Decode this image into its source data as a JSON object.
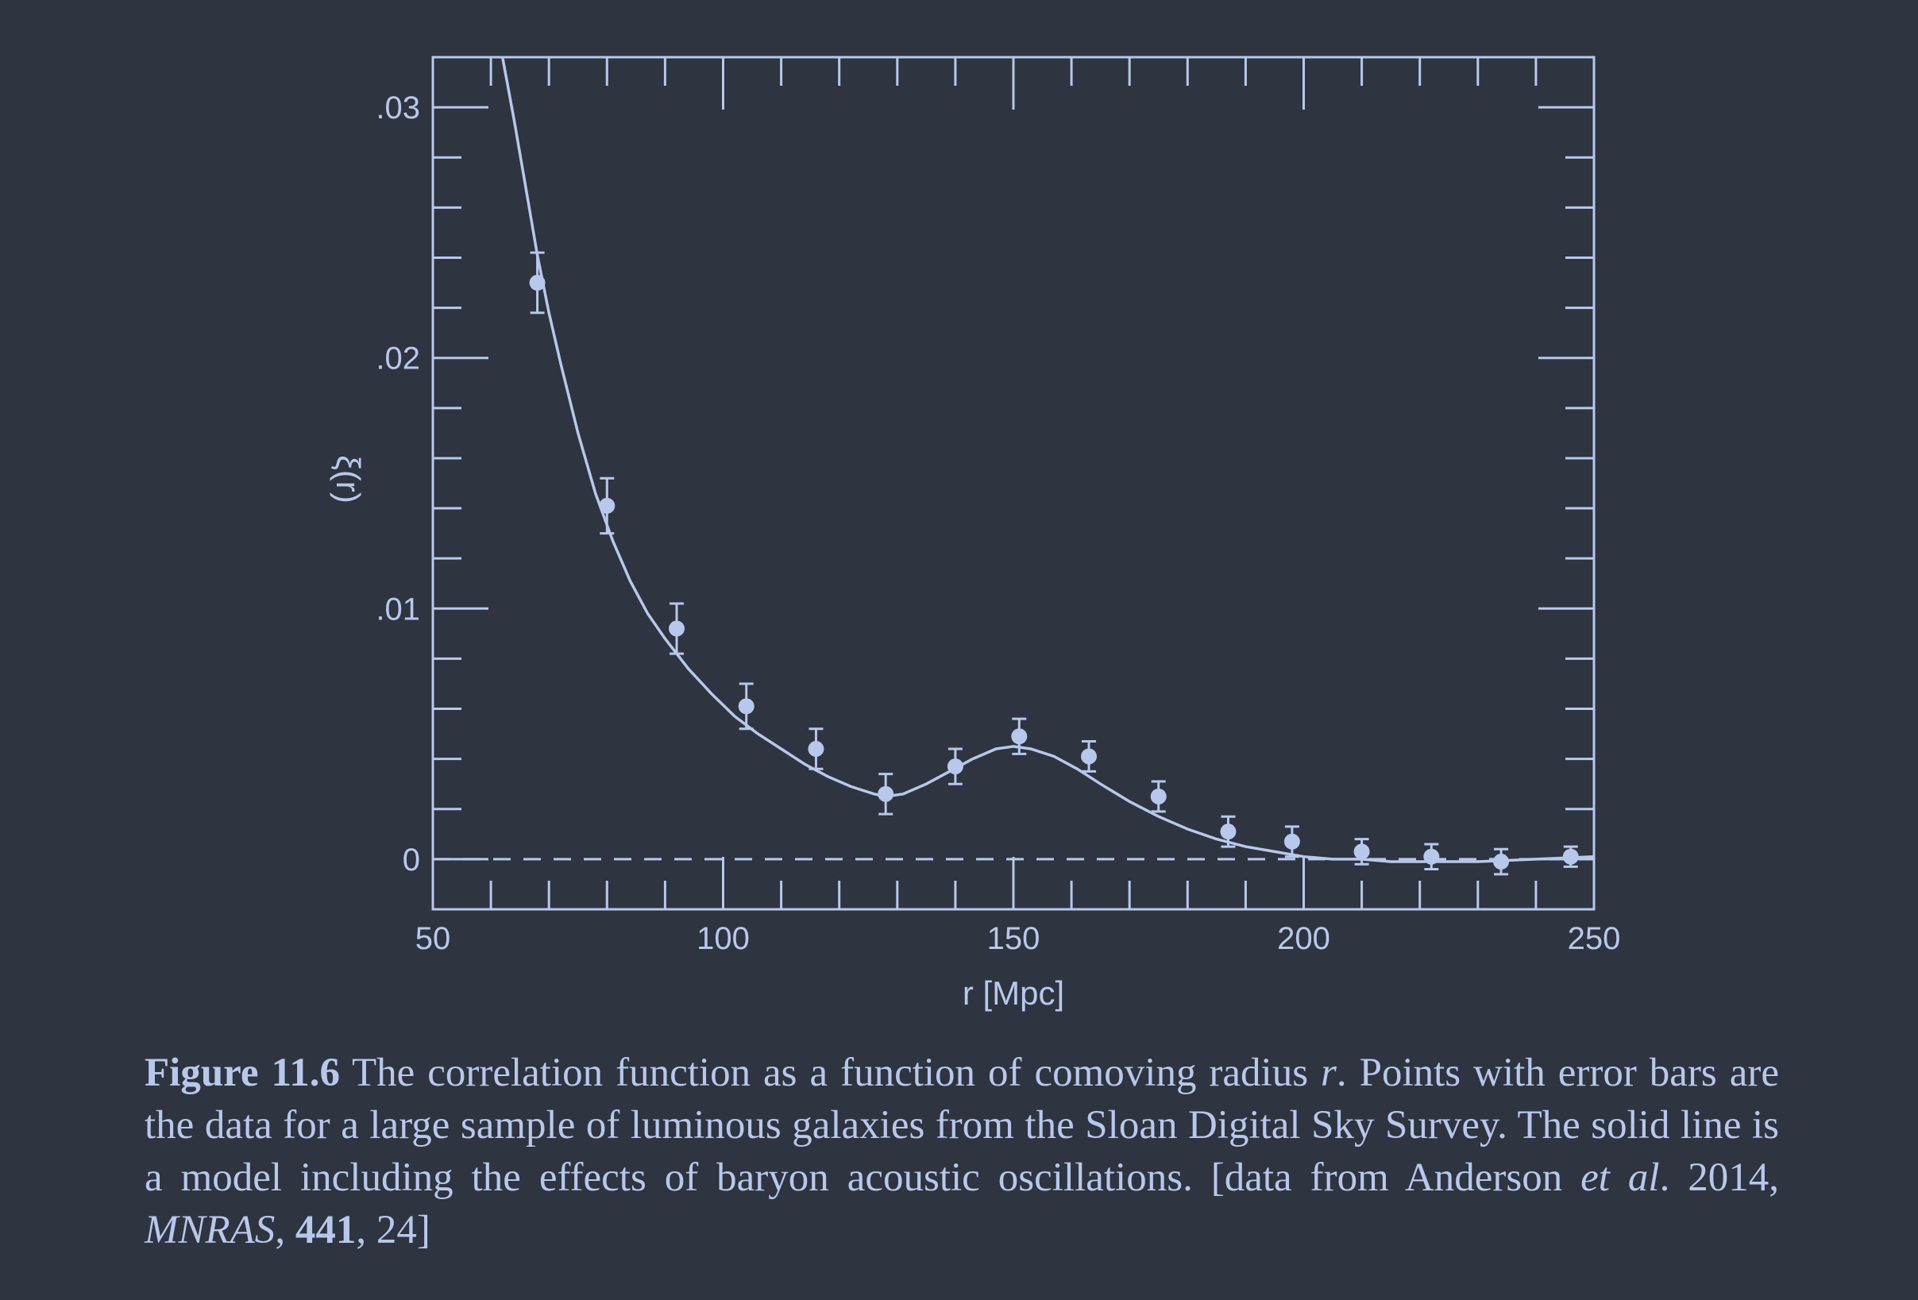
{
  "chart_data": {
    "type": "scatter",
    "title": "",
    "xlabel": "r [Mpc]",
    "ylabel": "ξ(r)",
    "xlim": [
      50,
      250
    ],
    "ylim": [
      -0.002,
      0.032
    ],
    "x_ticks": [
      {
        "value": 50,
        "label": "50"
      },
      {
        "value": 100,
        "label": "100"
      },
      {
        "value": 150,
        "label": "150"
      },
      {
        "value": 200,
        "label": "200"
      },
      {
        "value": 250,
        "label": "250"
      }
    ],
    "y_ticks": [
      {
        "value": 0,
        "label": "0"
      },
      {
        "value": 0.01,
        "label": ".01"
      },
      {
        "value": 0.02,
        "label": ".02"
      },
      {
        "value": 0.03,
        "label": ".03"
      }
    ],
    "grid": false,
    "zero_line": "dashed",
    "series": [
      {
        "kind": "points-with-error-bars",
        "x": [
          68,
          80,
          92,
          104,
          116,
          128,
          140,
          151,
          163,
          175,
          187,
          198,
          210,
          222,
          234,
          246
        ],
        "y": [
          0.023,
          0.0141,
          0.0092,
          0.0061,
          0.0044,
          0.0026,
          0.0037,
          0.0049,
          0.0041,
          0.0025,
          0.0011,
          0.0007,
          0.0003,
          0.0001,
          -0.0001,
          0.0001
        ],
        "err": [
          0.0012,
          0.0011,
          0.001,
          0.0009,
          0.0008,
          0.0008,
          0.0007,
          0.0007,
          0.0006,
          0.0006,
          0.0006,
          0.0006,
          0.0005,
          0.0005,
          0.0005,
          0.0004
        ]
      },
      {
        "kind": "model-line",
        "x": [
          62,
          64,
          66,
          68,
          70,
          72,
          75,
          78,
          81,
          84,
          87,
          90,
          94,
          98,
          102,
          106,
          110,
          114,
          118,
          122,
          126,
          128,
          131,
          135,
          139,
          143,
          147,
          150,
          153,
          157,
          161,
          165,
          170,
          175,
          180,
          185,
          190,
          195,
          200,
          205,
          210,
          215,
          220,
          230,
          240,
          250
        ],
        "y": [
          0.032,
          0.0295,
          0.0268,
          0.0241,
          0.0218,
          0.0198,
          0.017,
          0.0146,
          0.0127,
          0.0111,
          0.0098,
          0.0088,
          0.0076,
          0.0066,
          0.0057,
          0.005,
          0.0044,
          0.0038,
          0.0033,
          0.0029,
          0.0026,
          0.0025,
          0.0026,
          0.003,
          0.0035,
          0.004,
          0.0044,
          0.0045,
          0.0044,
          0.0041,
          0.0036,
          0.003,
          0.0023,
          0.0017,
          0.0012,
          0.0008,
          0.0005,
          0.0003,
          0.0001,
          0.0,
          0.0,
          -0.0001,
          -0.0001,
          -0.0001,
          0.0,
          0.0001
        ]
      }
    ]
  },
  "caption": {
    "figure_label": "Figure 11.6",
    "part1": " The correlation function as a function of comoving radius ",
    "var_r": "r",
    "part2": ". Points with error bars are the data for a large sample of luminous galaxies from the Sloan Digital Sky Survey. The solid line is a model including the effects of baryon acoustic oscillations. [data from Anderson ",
    "etal": "et al",
    "part3": ". 2014, ",
    "journal": "MNRAS",
    "part4": ", ",
    "volume": "441",
    "part5": ", 24]"
  },
  "colors": {
    "background": "#2e3440",
    "foreground": "#b8c8ec"
  }
}
